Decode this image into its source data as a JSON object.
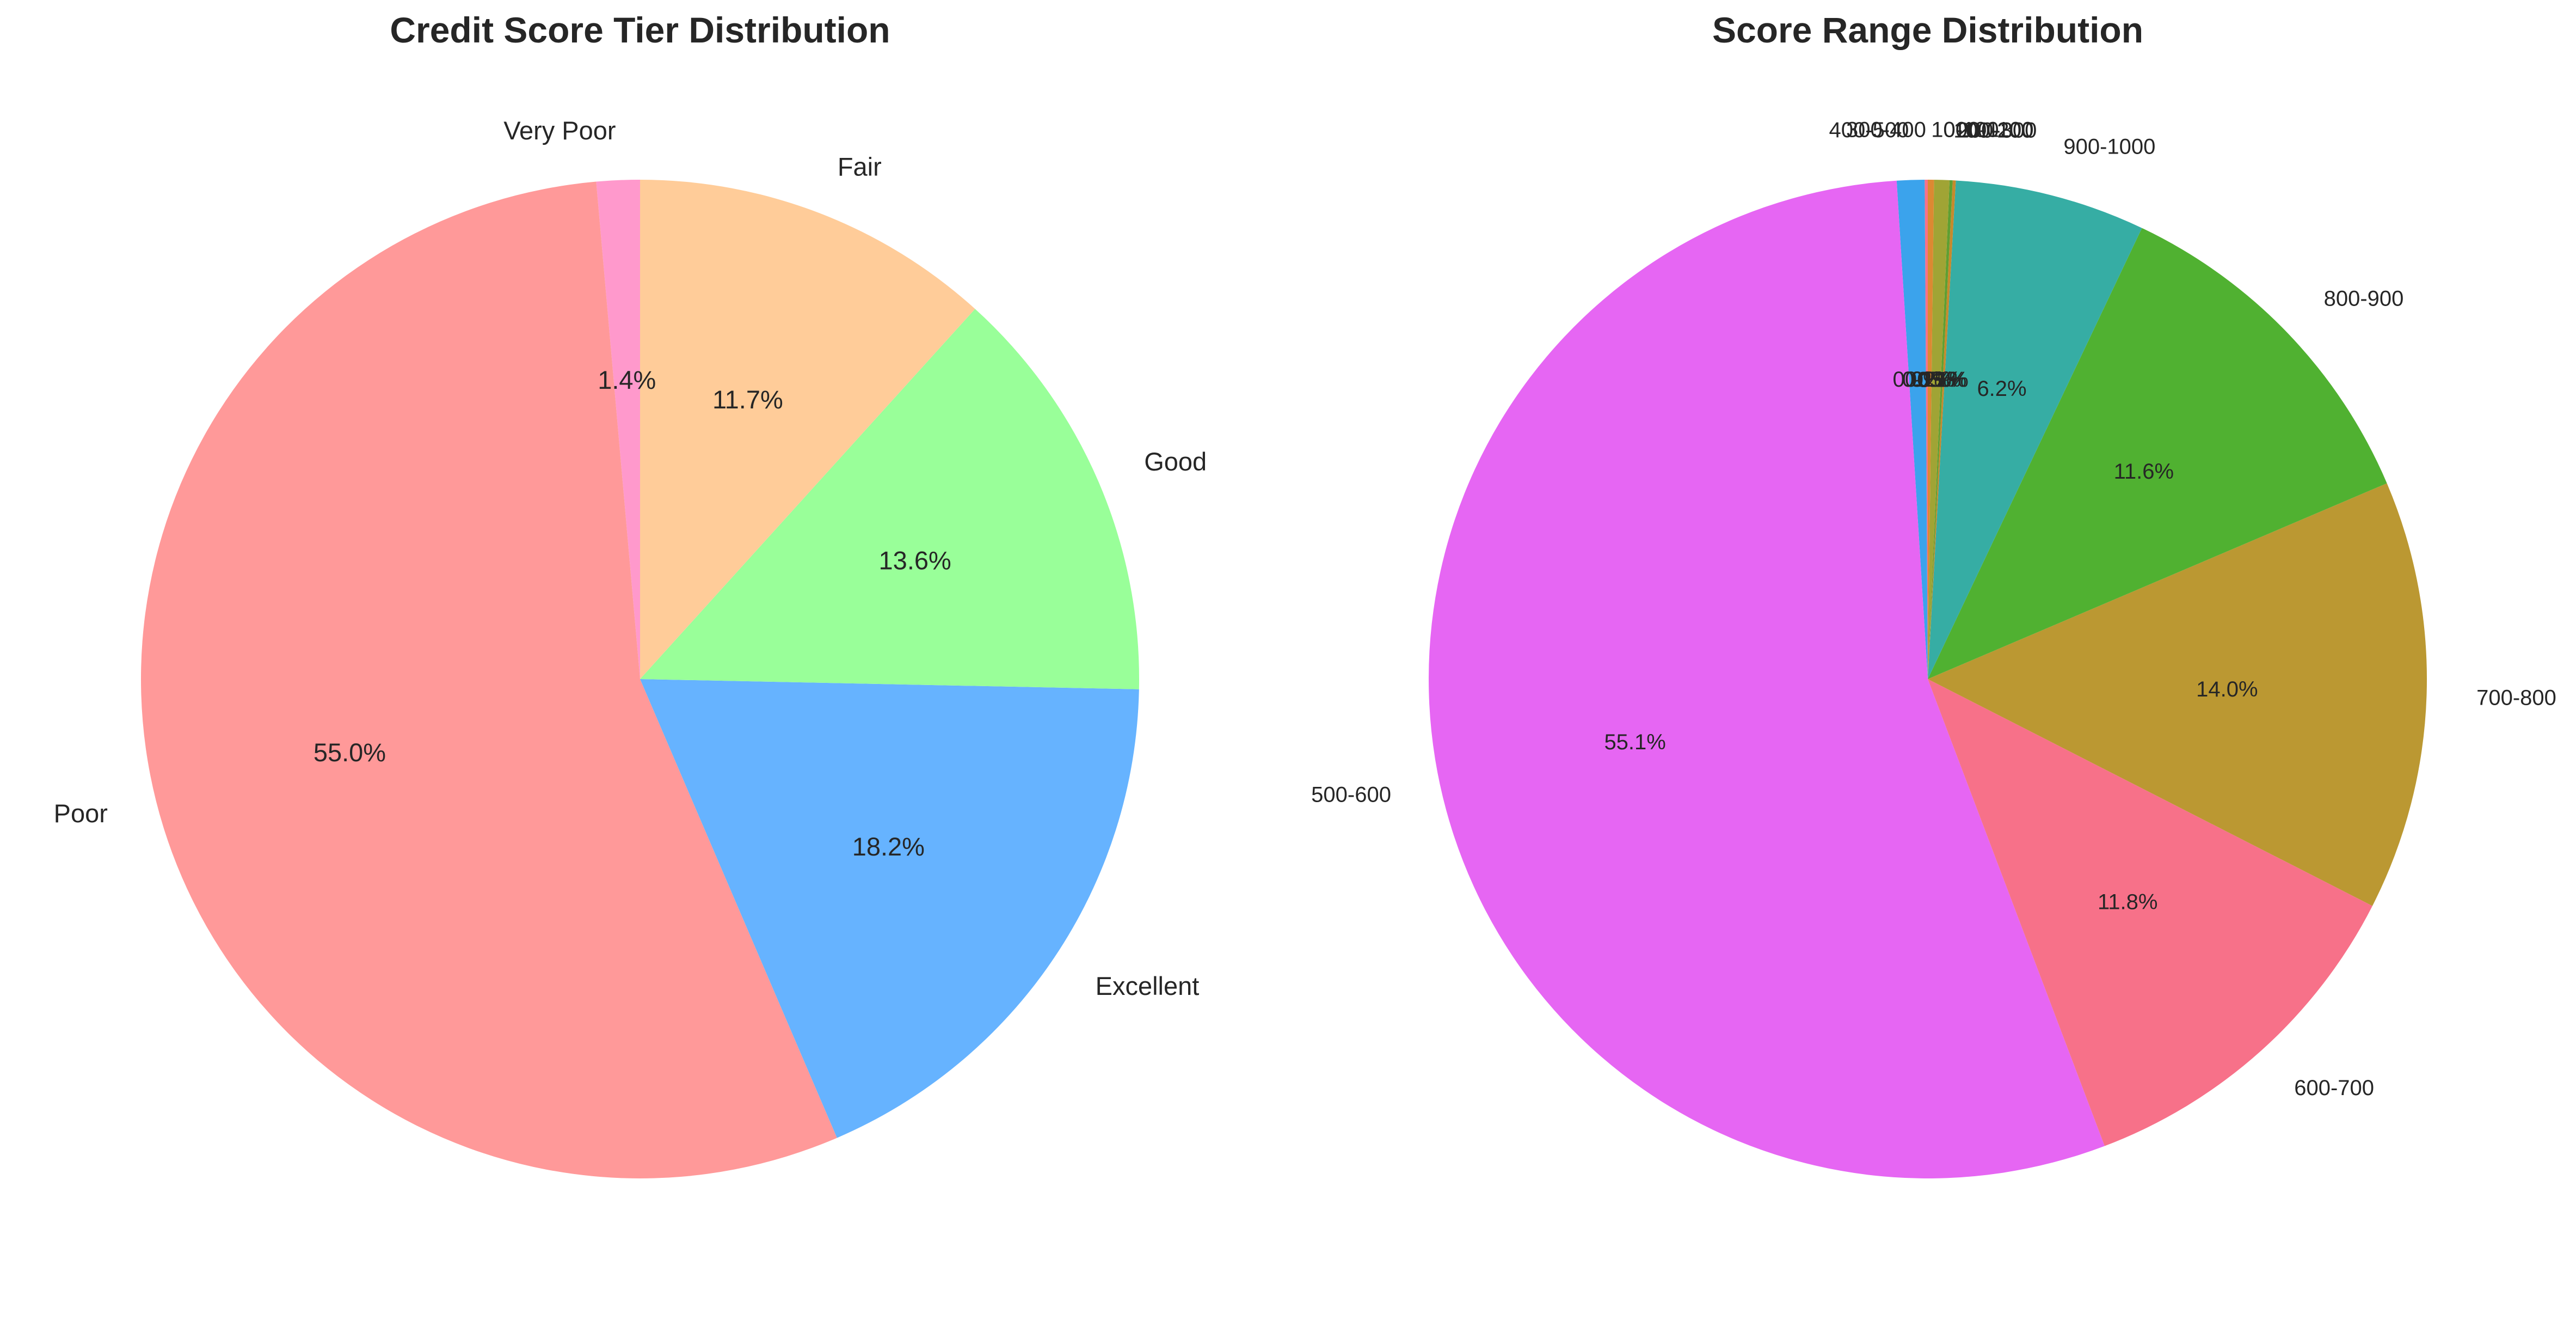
{
  "chart_data": [
    {
      "type": "pie",
      "title": "Credit Score Tier Distribution",
      "start_angle_deg": 90,
      "direction": "counterclockwise",
      "slices": [
        {
          "label": "Very Poor",
          "value": 1.4,
          "pct_label": "1.4%",
          "color": "#ff99cc"
        },
        {
          "label": "Poor",
          "value": 55.0,
          "pct_label": "55.0%",
          "color": "#ff9999"
        },
        {
          "label": "Excellent",
          "value": 18.2,
          "pct_label": "18.2%",
          "color": "#66b3ff"
        },
        {
          "label": "Good",
          "value": 13.6,
          "pct_label": "13.6%",
          "color": "#99ff99"
        },
        {
          "label": "Fair",
          "value": 11.7,
          "pct_label": "11.7%",
          "color": "#ffcc99"
        }
      ]
    },
    {
      "type": "pie",
      "title": "Score Range Distribution",
      "start_angle_deg": 90,
      "direction": "counterclockwise",
      "slices": [
        {
          "label": "300-400",
          "value": 0.1,
          "pct_label": "0.1%",
          "color": "#f77189"
        },
        {
          "label": "400-500",
          "value": 0.9,
          "pct_label": "0.9%",
          "color": "#3ba3ec"
        },
        {
          "label": "500-600",
          "value": 55.1,
          "pct_label": "55.1%",
          "color": "#e666f3"
        },
        {
          "label": "600-700",
          "value": 11.8,
          "pct_label": "11.8%",
          "color": "#f77189"
        },
        {
          "label": "700-800",
          "value": 14.0,
          "pct_label": "14.0%",
          "color": "#bb9832"
        },
        {
          "label": "800-900",
          "value": 11.6,
          "pct_label": "11.6%",
          "color": "#50b131"
        },
        {
          "label": "900-1000",
          "value": 6.2,
          "pct_label": "6.2%",
          "color": "#36ada4"
        },
        {
          "label": "200-300",
          "value": 0.1,
          "pct_label": "0.1%",
          "color": "#c68a2d"
        },
        {
          "label": "100-200",
          "value": 0.1,
          "pct_label": "0.1%",
          "color": "#5f9f32"
        },
        {
          "label": "0-100",
          "value": 0.5,
          "pct_label": "0.5%",
          "color": "#a0a435"
        },
        {
          "label": "1000-1100",
          "value": 0.2,
          "pct_label": "0.2%",
          "color": "#dc8932"
        }
      ]
    }
  ]
}
